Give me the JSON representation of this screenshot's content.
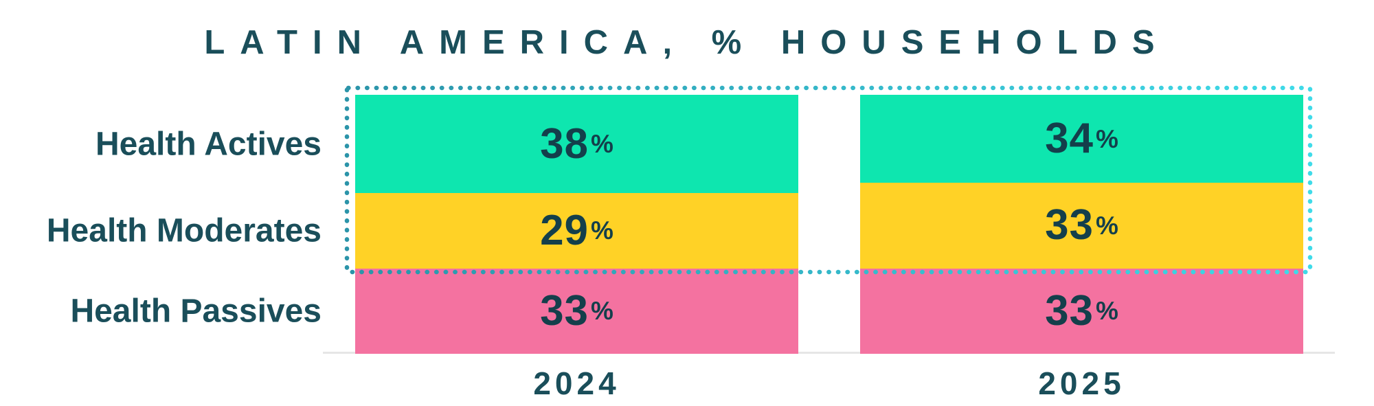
{
  "chart_data": {
    "type": "bar",
    "variant": "100%-stacked-columns",
    "title": "LATIN AMERICA, % HOUSEHOLDS",
    "categories": [
      "2024",
      "2025"
    ],
    "series": [
      {
        "name": "Health Actives",
        "values": [
          38,
          34
        ]
      },
      {
        "name": "Health Moderates",
        "values": [
          29,
          33
        ]
      },
      {
        "name": "Health Passives",
        "values": [
          33,
          33
        ]
      }
    ],
    "value_suffix": "%",
    "colors": [
      "#0ee6af",
      "#ffd226",
      "#f472a0"
    ],
    "label_text_color": "#1a4e5a",
    "value_text_color": "#143f4b",
    "highlight_box": {
      "around": [
        "Health Actives",
        "Health Moderates"
      ],
      "style": "dotted",
      "color_left": "#2b94a9",
      "color_right": "#3fdbe9"
    },
    "baseline_color": "#e6e6e6",
    "legend": "none",
    "gridlines": false,
    "ylim": [
      0,
      100
    ]
  }
}
